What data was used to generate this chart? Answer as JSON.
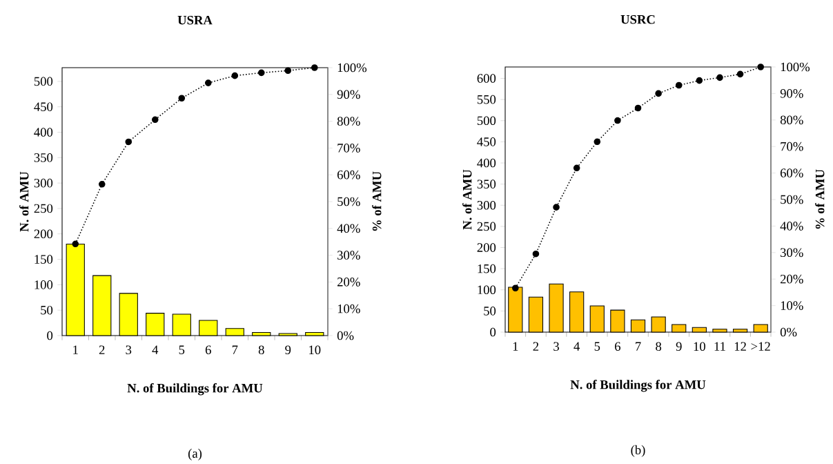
{
  "chart_data": [
    {
      "type": "bar",
      "title": "**USRA**",
      "xlabel": "**N. of Buildings for AMU**",
      "ylabel": "**N. of AMU**",
      "y2label": "**% of  AMU**",
      "categories": [
        "1",
        "2",
        "3",
        "4",
        "5",
        "6",
        "7",
        "8",
        "9",
        "10"
      ],
      "series": [
        {
          "color": "#ffff00",
          "values": [
            180,
            118,
            83,
            44,
            42,
            30,
            14,
            6,
            4,
            6
          ]
        },
        {
          "type": "line",
          "axis": "y2",
          "color": "#000000",
          "values": [
            34.2,
            56.5,
            72.3,
            80.6,
            88.6,
            94.3,
            97.0,
            98.1,
            98.9,
            100
          ]
        }
      ],
      "marker": "circle",
      "line_style": "dotted",
      "ylim": [
        0,
        527
      ],
      "yticks": [
        0,
        50,
        100,
        150,
        200,
        250,
        300,
        350,
        400,
        450,
        500
      ],
      "y2lim": [
        0,
        100
      ],
      "y2ticks": [
        {
          "value": 0,
          "label": "0%"
        },
        {
          "value": 10,
          "label": "10%"
        },
        {
          "value": 20,
          "label": "20%"
        },
        {
          "value": 30,
          "label": "30%"
        },
        {
          "value": 40,
          "label": "40%"
        },
        {
          "value": 50,
          "label": "50%"
        },
        {
          "value": 60,
          "label": "60%"
        },
        {
          "value": 70,
          "label": "70%"
        },
        {
          "value": 80,
          "label": "80%"
        },
        {
          "value": 90,
          "label": "90%"
        },
        {
          "value": 100,
          "label": "100%"
        }
      ],
      "annotations": [
        "(a)"
      ]
    },
    {
      "type": "bar",
      "title": "**USRC**",
      "xlabel": "**N. of Buildings for AMU**",
      "ylabel": "**N. of  AMU**",
      "y2label": "**% of AMU**",
      "categories": [
        "1",
        "2",
        "3",
        "4",
        "5",
        "6",
        "7",
        "8",
        "9",
        "10",
        "11",
        "12",
        ">12"
      ],
      "series": [
        {
          "color": "#ffc000",
          "values": [
            106,
            83,
            114,
            95,
            62,
            52,
            29,
            36,
            18,
            11,
            7,
            7,
            18
          ]
        },
        {
          "type": "line",
          "axis": "y2",
          "color": "#000000",
          "values": [
            16.6,
            29.5,
            47.1,
            61.9,
            71.8,
            79.8,
            84.5,
            90.0,
            93.1,
            94.9,
            96.0,
            97.3,
            100
          ]
        }
      ],
      "marker": "circle",
      "line_style": "dotted",
      "ylim": [
        0,
        627
      ],
      "yticks": [
        0,
        50,
        100,
        150,
        200,
        250,
        300,
        350,
        400,
        450,
        500,
        550,
        600
      ],
      "y2lim": [
        0,
        100
      ],
      "y2ticks": [
        {
          "value": 0,
          "label": "0%"
        },
        {
          "value": 10,
          "label": "10%"
        },
        {
          "value": 20,
          "label": "20%"
        },
        {
          "value": 30,
          "label": "30%"
        },
        {
          "value": 40,
          "label": "40%"
        },
        {
          "value": 50,
          "label": "50%"
        },
        {
          "value": 60,
          "label": "60%"
        },
        {
          "value": 70,
          "label": "70%"
        },
        {
          "value": 80,
          "label": "80%"
        },
        {
          "value": 90,
          "label": "90%"
        },
        {
          "value": 100,
          "label": "100%"
        }
      ],
      "annotations": [
        "(b)"
      ]
    }
  ]
}
